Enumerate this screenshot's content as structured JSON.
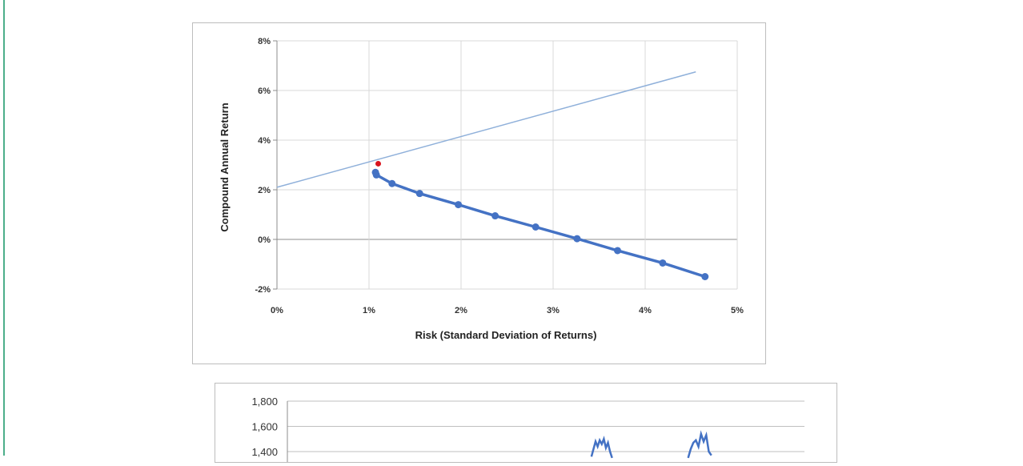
{
  "chart_data": [
    {
      "type": "line",
      "title": "",
      "xlabel": "Risk (Standard Deviation of Returns)",
      "ylabel": "Compound Annual Return",
      "xlim": [
        0,
        5
      ],
      "ylim": [
        -2,
        8
      ],
      "x_ticks": [
        "0%",
        "1%",
        "2%",
        "3%",
        "4%",
        "5%"
      ],
      "y_ticks": [
        "-2%",
        "0%",
        "2%",
        "4%",
        "6%",
        "8%"
      ],
      "grid": true,
      "legend": "none",
      "colors": {
        "frontier": "#4472c4",
        "capital_line": "#8fb0da",
        "tangency": "#d9141e"
      },
      "series": [
        {
          "role": "frontier",
          "x": [
            1.07,
            1.08,
            1.25,
            1.55,
            1.97,
            2.37,
            2.81,
            3.26,
            3.7,
            4.19,
            4.65
          ],
          "y": [
            2.7,
            2.6,
            2.25,
            1.85,
            1.4,
            0.95,
            0.5,
            0.03,
            -0.45,
            -0.95,
            -1.5
          ]
        },
        {
          "role": "capital_line",
          "x": [
            0,
            4.55
          ],
          "y": [
            2.1,
            6.75
          ]
        },
        {
          "role": "tangency",
          "x": [
            1.1
          ],
          "y": [
            3.05
          ]
        }
      ]
    },
    {
      "type": "line",
      "title": "",
      "y_ticks": [
        "1,800",
        "1,600",
        "1,400"
      ],
      "ylim": [
        1400,
        1800
      ],
      "grid": true,
      "colors": {
        "line": "#4472c4"
      },
      "series": [
        {
          "role": "partial_visible_line",
          "x_fraction": [
            0.588,
            0.592,
            0.596,
            0.6,
            0.604,
            0.608,
            0.612,
            0.616,
            0.62,
            0.624,
            0.628,
            0.775,
            0.78,
            0.785,
            0.79,
            0.795,
            0.8,
            0.805,
            0.81,
            0.815,
            0.82
          ],
          "y": [
            1360,
            1420,
            1480,
            1440,
            1490,
            1460,
            1500,
            1430,
            1470,
            1400,
            1350,
            1350,
            1420,
            1470,
            1490,
            1440,
            1540,
            1480,
            1530,
            1400,
            1370
          ]
        }
      ]
    }
  ]
}
